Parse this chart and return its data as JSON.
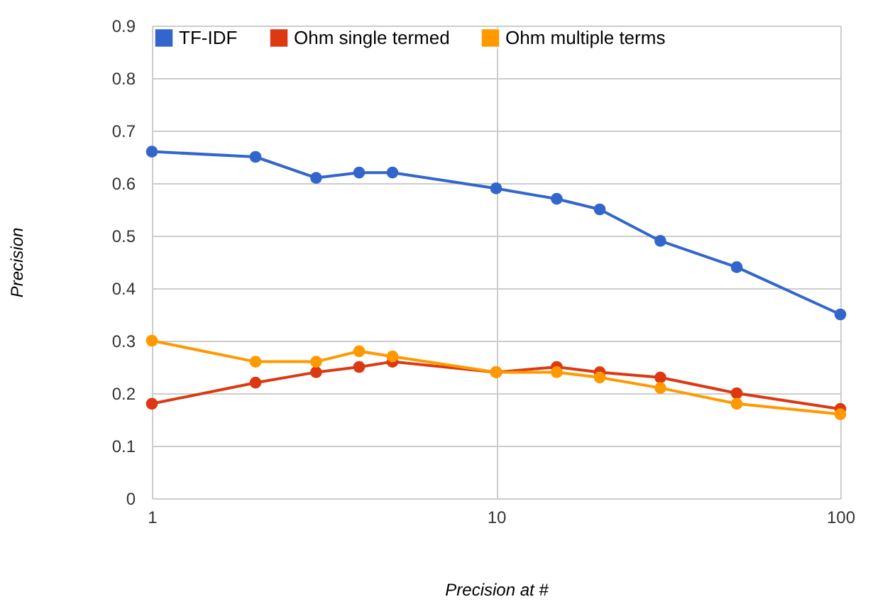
{
  "chart_data": {
    "type": "line",
    "xlabel": "Precision at #",
    "ylabel": "Precision",
    "x": [
      1,
      2,
      3,
      4,
      5,
      10,
      15,
      20,
      30,
      50,
      100
    ],
    "series": [
      {
        "name": "TF-IDF",
        "color": "#3366cc",
        "values": [
          0.66,
          0.65,
          0.61,
          0.62,
          0.62,
          0.59,
          0.57,
          0.55,
          0.49,
          0.44,
          0.35
        ]
      },
      {
        "name": "Ohm single termed",
        "color": "#dc3912",
        "values": [
          0.18,
          0.22,
          0.24,
          0.25,
          0.26,
          0.24,
          0.25,
          0.24,
          0.23,
          0.2,
          0.17
        ]
      },
      {
        "name": "Ohm multiple terms",
        "color": "#ff9900",
        "values": [
          0.3,
          0.26,
          0.26,
          0.28,
          0.27,
          0.24,
          0.24,
          0.23,
          0.21,
          0.18,
          0.16
        ]
      }
    ],
    "log": "x",
    "xlim": [
      1,
      100
    ],
    "xticks": [
      1,
      10,
      100
    ],
    "ylim": [
      0,
      0.9
    ],
    "yticks": [
      0,
      0.1,
      0.2,
      0.3,
      0.4,
      0.5,
      0.6,
      0.7,
      0.8,
      0.9
    ],
    "grid": true,
    "legend": "top left",
    "marker": "circle",
    "line_style": "solid"
  }
}
